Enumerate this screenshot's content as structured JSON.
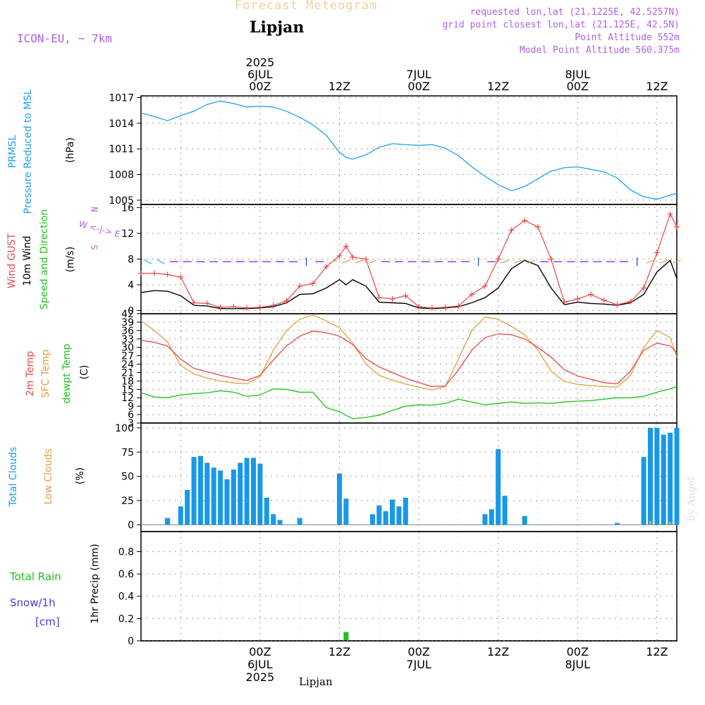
{
  "header": {
    "title": "Forecast Meteogram",
    "location": "Lipjan",
    "model": "ICON-EU, ~ 7km",
    "requested": "requested lon,lat (21.1225E, 42.5257N)",
    "grid_point": "grid point closest lon,lat (21.125E, 42.5N)",
    "point_alt": "Point Altitude 552m",
    "model_alt": "Model Point Altitude 560.375m"
  },
  "footer": {
    "location": "Lipjan",
    "watermark": "by Angel"
  },
  "time_axis": {
    "top_labels": [
      {
        "h": 0,
        "lines": [
          "2025",
          "6JUL",
          "00Z"
        ]
      },
      {
        "h": 12,
        "lines": [
          "12Z"
        ]
      },
      {
        "h": 24,
        "lines": [
          "7JUL",
          "00Z"
        ]
      },
      {
        "h": 36,
        "lines": [
          "12Z"
        ]
      },
      {
        "h": 48,
        "lines": [
          "8JUL",
          "00Z"
        ]
      },
      {
        "h": 60,
        "lines": [
          "12Z"
        ]
      }
    ],
    "bottom_labels": [
      {
        "h": 0,
        "lines": [
          "00Z",
          "6JUL",
          "2025"
        ]
      },
      {
        "h": 12,
        "lines": [
          "12Z"
        ]
      },
      {
        "h": 24,
        "lines": [
          "00Z",
          "7JUL"
        ]
      },
      {
        "h": 36,
        "lines": [
          "12Z"
        ]
      },
      {
        "h": 48,
        "lines": [
          "00Z",
          "8JUL"
        ]
      },
      {
        "h": 60,
        "lines": [
          "12Z"
        ]
      }
    ]
  },
  "panel_labels": {
    "pressure": [
      "PRMSL",
      "Pressure Reduced to MSL",
      "(hPa)"
    ],
    "wind": [
      "Wind GUST",
      "10m Wind",
      "Speed and Direction",
      "(m/s)"
    ],
    "compass": [
      "N",
      "W <-|-> E",
      "S"
    ],
    "temp": [
      "2m Temp",
      "SFC Temp",
      "dewpt Temp",
      "(C)"
    ],
    "clouds": [
      "Total Clouds",
      "Low Clouds",
      "(%)"
    ],
    "precip_left": [
      "Total  Rain",
      "Snow/1h",
      "[cm]"
    ],
    "precip_axis": "1hr Precip (mm)"
  },
  "colors": {
    "pressure": "#1ea0f0",
    "gust": "#e84848",
    "wind": "#000000",
    "temp2m": "#e84848",
    "sfc": "#e0a040",
    "dewpt": "#20c020",
    "clouds": "#1898e8",
    "lowclouds": "#e0a040",
    "rain": "#20c020",
    "snow": "#4040e0",
    "compass": "#b060e0"
  },
  "chart_data": [
    {
      "type": "line",
      "name": "pressure",
      "x_unit": "hours from 6JUL 00Z",
      "xlim": [
        -18,
        63
      ],
      "ylim": [
        1004.5,
        1017.2
      ],
      "yticks": [
        1005,
        1008,
        1011,
        1014,
        1017
      ],
      "series": [
        {
          "name": "PRMSL",
          "x": [
            -18,
            -16,
            -14,
            -12,
            -10,
            -8,
            -6,
            -4,
            -2,
            0,
            2,
            4,
            6,
            8,
            10,
            12,
            13,
            14,
            16,
            18,
            20,
            22,
            24,
            26,
            28,
            30,
            32,
            34,
            36,
            38,
            40,
            42,
            44,
            46,
            48,
            50,
            52,
            54,
            56,
            58,
            60,
            62,
            63
          ],
          "y": [
            1015.2,
            1014.8,
            1014.3,
            1014.9,
            1015.4,
            1016.2,
            1016.6,
            1016.3,
            1015.9,
            1016.0,
            1015.9,
            1015.4,
            1014.7,
            1013.8,
            1012.6,
            1010.6,
            1010.0,
            1009.8,
            1010.3,
            1011.2,
            1011.6,
            1011.5,
            1011.4,
            1011.5,
            1011.1,
            1010.2,
            1008.9,
            1007.8,
            1006.8,
            1006.1,
            1006.6,
            1007.5,
            1008.4,
            1008.8,
            1008.9,
            1008.6,
            1008.3,
            1007.6,
            1006.2,
            1005.4,
            1005.1,
            1005.6,
            1005.8
          ]
        }
      ]
    },
    {
      "type": "line",
      "name": "wind",
      "xlim": [
        -18,
        63
      ],
      "ylim": [
        -0.5,
        16.5
      ],
      "yticks": [
        0,
        4,
        8,
        12,
        16
      ],
      "series": [
        {
          "name": "Wind GUST",
          "x": [
            -18,
            -16,
            -14,
            -12,
            -10,
            -8,
            -6,
            -4,
            -2,
            0,
            2,
            4,
            6,
            8,
            10,
            12,
            13,
            14,
            16,
            18,
            20,
            22,
            24,
            26,
            28,
            30,
            32,
            34,
            36,
            38,
            40,
            42,
            44,
            46,
            48,
            50,
            52,
            54,
            56,
            58,
            60,
            62,
            63
          ],
          "y": [
            5.8,
            5.8,
            5.6,
            5.2,
            1.2,
            1.1,
            0.5,
            0.6,
            0.4,
            0.5,
            0.8,
            1.5,
            3.8,
            4.2,
            6.8,
            8.5,
            10.0,
            8.3,
            8.0,
            2.0,
            1.8,
            2.3,
            0.6,
            0.4,
            0.5,
            0.7,
            2.5,
            3.8,
            8.0,
            12.5,
            14.0,
            13.0,
            8.0,
            1.3,
            1.8,
            2.5,
            1.6,
            0.9,
            1.4,
            3.5,
            9.0,
            15.0,
            13.0
          ]
        },
        {
          "name": "10m Wind",
          "x": [
            -18,
            -16,
            -14,
            -12,
            -10,
            -8,
            -6,
            -4,
            -2,
            0,
            2,
            4,
            6,
            8,
            10,
            12,
            13,
            14,
            16,
            18,
            20,
            22,
            24,
            26,
            28,
            30,
            32,
            34,
            36,
            38,
            40,
            42,
            44,
            46,
            48,
            50,
            52,
            54,
            56,
            58,
            60,
            62,
            63
          ],
          "y": [
            2.8,
            3.1,
            3.0,
            2.3,
            0.8,
            0.7,
            0.3,
            0.3,
            0.3,
            0.4,
            0.6,
            1.2,
            2.5,
            2.6,
            3.5,
            4.8,
            4.0,
            4.8,
            3.8,
            1.3,
            1.2,
            1.1,
            0.4,
            0.3,
            0.4,
            0.6,
            1.2,
            2.0,
            3.5,
            6.5,
            7.8,
            7.0,
            3.5,
            0.9,
            1.3,
            1.1,
            1.0,
            0.8,
            1.2,
            2.5,
            6.0,
            7.8,
            5.0
          ]
        }
      ]
    },
    {
      "type": "line",
      "name": "temperature",
      "xlim": [
        -18,
        63
      ],
      "ylim": [
        3,
        42
      ],
      "yticks": [
        3,
        6,
        9,
        12,
        15,
        18,
        21,
        24,
        27,
        30,
        33,
        36,
        39,
        42
      ],
      "series": [
        {
          "name": "2m Temp",
          "x": [
            -18,
            -16,
            -14,
            -12,
            -10,
            -8,
            -6,
            -4,
            -2,
            0,
            2,
            4,
            6,
            8,
            10,
            12,
            14,
            16,
            18,
            20,
            22,
            24,
            26,
            28,
            30,
            32,
            34,
            36,
            38,
            40,
            42,
            44,
            46,
            48,
            50,
            52,
            54,
            56,
            58,
            60,
            62,
            63
          ],
          "y": [
            32.5,
            31.8,
            30.5,
            25.8,
            22.5,
            21.3,
            20.0,
            19.0,
            18.2,
            20.0,
            25.5,
            30.5,
            34.0,
            35.8,
            35.2,
            34.0,
            31.0,
            26.0,
            23.0,
            21.0,
            19.0,
            17.4,
            16.0,
            16.2,
            22.0,
            29.0,
            33.5,
            34.8,
            34.5,
            33.0,
            30.0,
            26.5,
            22.0,
            19.8,
            18.6,
            17.4,
            17.0,
            21.5,
            29.0,
            31.5,
            30.5,
            28.0
          ]
        },
        {
          "name": "SFC Temp",
          "x": [
            -18,
            -16,
            -14,
            -12,
            -10,
            -8,
            -6,
            -4,
            -2,
            0,
            2,
            4,
            6,
            8,
            10,
            12,
            14,
            16,
            18,
            20,
            22,
            24,
            26,
            28,
            30,
            32,
            34,
            36,
            38,
            40,
            42,
            44,
            46,
            48,
            50,
            52,
            54,
            56,
            58,
            60,
            62,
            63
          ],
          "y": [
            39.5,
            36.0,
            32.0,
            23.5,
            20.5,
            19.0,
            18.0,
            17.3,
            17.0,
            19.5,
            29.0,
            36.0,
            40.0,
            41.5,
            39.5,
            37.0,
            31.5,
            24.0,
            20.0,
            18.3,
            16.9,
            15.8,
            14.8,
            16.0,
            26.0,
            36.0,
            40.8,
            40.0,
            37.5,
            34.5,
            29.0,
            21.5,
            17.8,
            16.8,
            16.3,
            16.0,
            15.8,
            20.0,
            30.0,
            36.0,
            33.5,
            26.5
          ]
        },
        {
          "name": "dewpt Temp",
          "x": [
            -18,
            -16,
            -14,
            -12,
            -10,
            -8,
            -6,
            -4,
            -2,
            0,
            2,
            4,
            6,
            8,
            10,
            12,
            14,
            16,
            18,
            20,
            22,
            24,
            26,
            28,
            30,
            32,
            34,
            36,
            38,
            40,
            42,
            44,
            46,
            48,
            50,
            52,
            54,
            56,
            58,
            60,
            62,
            63
          ],
          "y": [
            13.8,
            12.3,
            12.0,
            13.0,
            13.5,
            13.8,
            14.5,
            14.0,
            12.5,
            13.0,
            15.2,
            15.0,
            14.0,
            14.0,
            8.5,
            7.0,
            4.5,
            5.0,
            5.8,
            7.5,
            9.0,
            9.5,
            9.4,
            10.0,
            11.5,
            10.5,
            9.5,
            10.0,
            10.5,
            10.0,
            10.2,
            10.0,
            10.5,
            10.8,
            11.0,
            11.5,
            12.0,
            12.0,
            12.5,
            14.0,
            15.2,
            16.0
          ]
        }
      ]
    },
    {
      "type": "bar",
      "name": "clouds",
      "xlim": [
        -18,
        63
      ],
      "ylim": [
        -7,
        105
      ],
      "yticks": [
        0,
        25,
        50,
        75,
        100
      ],
      "series": [
        {
          "name": "Total Clouds",
          "x": [
            -14,
            -13,
            -12,
            -11,
            -10,
            -9,
            -8,
            -7,
            -6,
            -5,
            -4,
            -3,
            -2,
            -1,
            0,
            1,
            2,
            3,
            4,
            5,
            6,
            8,
            12,
            13,
            17,
            18,
            19,
            20,
            21,
            22,
            23,
            34,
            35,
            36,
            37,
            40,
            54,
            58,
            59,
            60,
            61,
            62,
            63
          ],
          "y": [
            7,
            0,
            19,
            36,
            70,
            71,
            64,
            59,
            56,
            47,
            57,
            64,
            69,
            69,
            63,
            28,
            11,
            5,
            0,
            0,
            7,
            0,
            53,
            27,
            11,
            20,
            14,
            26,
            19,
            28,
            0,
            11,
            16,
            78,
            30,
            9,
            2,
            70,
            100,
            100,
            93,
            95,
            100
          ]
        },
        {
          "name": "Low Clouds",
          "x": [
            59,
            62
          ],
          "y": [
            4,
            3
          ]
        }
      ]
    },
    {
      "type": "bar",
      "name": "precipitation",
      "xlim": [
        -18,
        63
      ],
      "ylim": [
        0,
        0.98
      ],
      "yticks": [
        0,
        0.2,
        0.4,
        0.6,
        0.8
      ],
      "series": [
        {
          "name": "Total Rain",
          "x": [
            13,
            37
          ],
          "y": [
            0.08,
            0.005
          ]
        },
        {
          "name": "Snow/1h",
          "x": [],
          "y": []
        }
      ]
    }
  ]
}
